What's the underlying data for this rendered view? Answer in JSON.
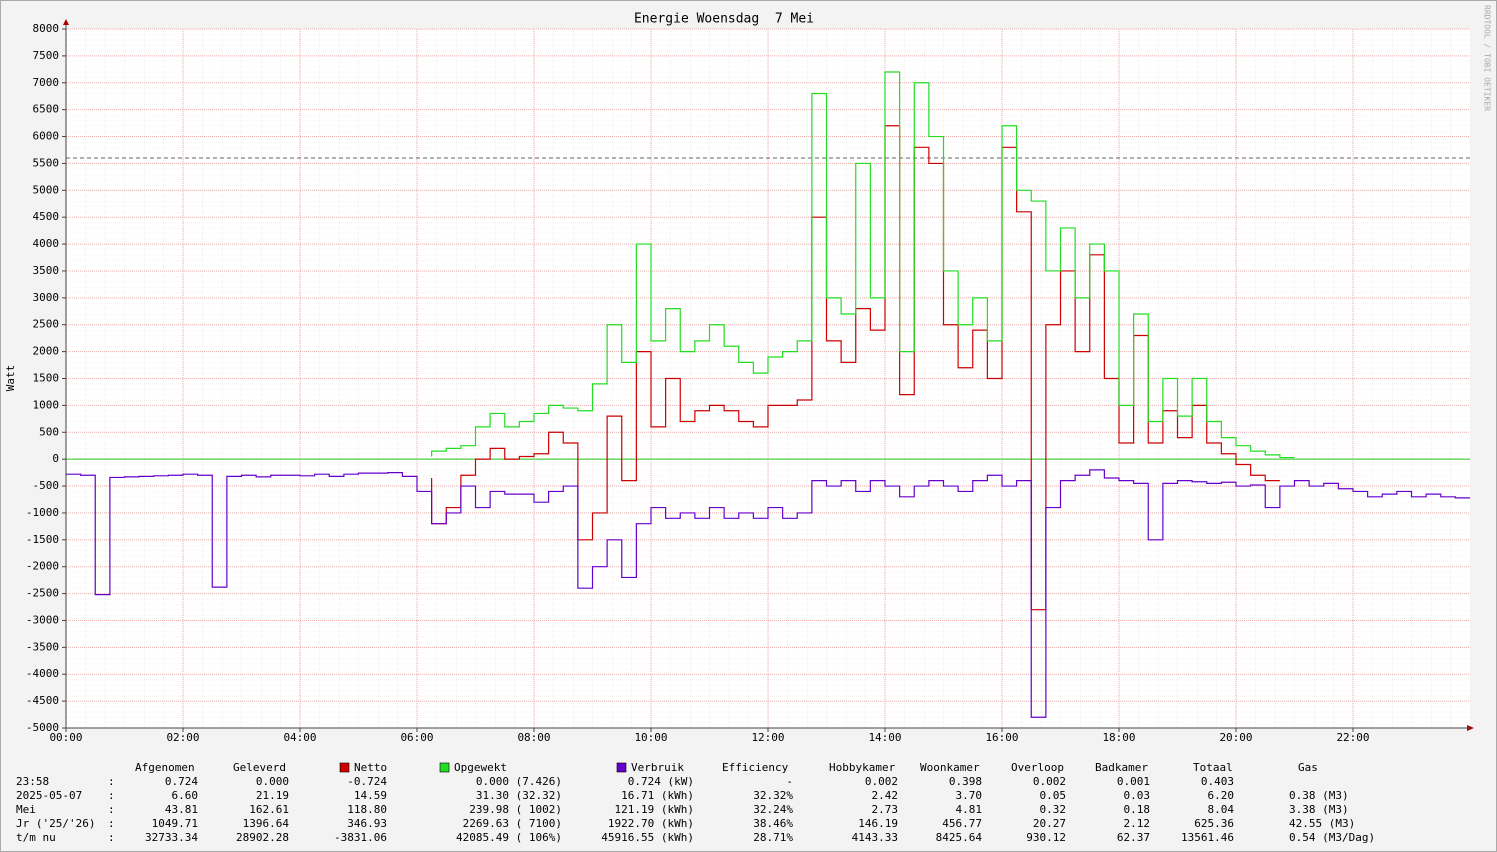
{
  "chart_data": {
    "type": "line",
    "title": "Energie Woensdag  7 Mei",
    "ylabel": "Watt",
    "watermark": "RRDTOOL / TOBI OETIKER",
    "xlim": [
      0,
      24
    ],
    "ylim": [
      -5000,
      8000
    ],
    "xticks": [
      {
        "value": 0,
        "label": "00:00"
      },
      {
        "value": 2,
        "label": "02:00"
      },
      {
        "value": 4,
        "label": "04:00"
      },
      {
        "value": 6,
        "label": "06:00"
      },
      {
        "value": 8,
        "label": "08:00"
      },
      {
        "value": 10,
        "label": "10:00"
      },
      {
        "value": 12,
        "label": "12:00"
      },
      {
        "value": 14,
        "label": "14:00"
      },
      {
        "value": 16,
        "label": "16:00"
      },
      {
        "value": 18,
        "label": "18:00"
      },
      {
        "value": 20,
        "label": "20:00"
      },
      {
        "value": 22,
        "label": "22:00"
      }
    ],
    "yticks": [
      -5000,
      -4500,
      -4000,
      -3500,
      -3000,
      -2500,
      -2000,
      -1500,
      -1000,
      -500,
      0,
      500,
      1000,
      1500,
      2000,
      2500,
      3000,
      3500,
      4000,
      4500,
      5000,
      5500,
      6000,
      6500,
      7000,
      7500,
      8000
    ],
    "grid": true,
    "hline": 5600,
    "x": [
      0,
      0.25,
      0.5,
      0.75,
      1,
      1.25,
      1.5,
      1.75,
      2,
      2.25,
      2.5,
      2.75,
      3,
      3.25,
      3.5,
      3.75,
      4,
      4.25,
      4.5,
      4.75,
      5,
      5.25,
      5.5,
      5.75,
      6,
      6.25,
      6.5,
      6.75,
      7,
      7.25,
      7.5,
      7.75,
      8,
      8.25,
      8.5,
      8.75,
      9,
      9.25,
      9.5,
      9.75,
      10,
      10.25,
      10.5,
      10.75,
      11,
      11.25,
      11.5,
      11.75,
      12,
      12.25,
      12.5,
      12.75,
      13,
      13.25,
      13.5,
      13.75,
      14,
      14.25,
      14.5,
      14.75,
      15,
      15.25,
      15.5,
      15.75,
      16,
      16.25,
      16.5,
      16.75,
      17,
      17.25,
      17.5,
      17.75,
      18,
      18.25,
      18.5,
      18.75,
      19,
      19.25,
      19.5,
      19.75,
      20,
      20.25,
      20.5,
      20.75,
      21,
      21.25,
      21.5,
      21.75,
      22,
      22.25,
      22.5,
      22.75,
      23,
      23.25,
      23.5,
      23.75,
      24
    ],
    "series": [
      {
        "name": "Netto",
        "color": "#cc0000",
        "values": [
          null,
          null,
          null,
          null,
          null,
          null,
          null,
          null,
          null,
          null,
          null,
          null,
          null,
          null,
          null,
          null,
          null,
          null,
          null,
          null,
          null,
          null,
          null,
          null,
          null,
          -350,
          -1200,
          -900,
          -300,
          0,
          200,
          0,
          50,
          100,
          500,
          300,
          -1500,
          -1000,
          800,
          -400,
          2000,
          600,
          1500,
          700,
          900,
          1000,
          900,
          700,
          600,
          1000,
          1000,
          1100,
          4500,
          2200,
          1800,
          2800,
          2400,
          6200,
          1200,
          5800,
          5500,
          2500,
          1700,
          2400,
          1500,
          5800,
          4600,
          -2800,
          2500,
          3500,
          2000,
          3800,
          1500,
          300,
          2300,
          300,
          900,
          400,
          1000,
          300,
          100,
          -100,
          -300,
          -400,
          null,
          null,
          null,
          null,
          null,
          null,
          null,
          null,
          null,
          null,
          null,
          null,
          null
        ]
      },
      {
        "name": "Opgewekt",
        "color": "#22dd22",
        "values": [
          null,
          null,
          null,
          null,
          null,
          null,
          null,
          null,
          null,
          null,
          null,
          null,
          null,
          null,
          null,
          null,
          null,
          null,
          null,
          null,
          null,
          null,
          null,
          null,
          null,
          50,
          150,
          200,
          250,
          600,
          850,
          600,
          700,
          850,
          1000,
          950,
          900,
          1400,
          2500,
          1800,
          4000,
          2200,
          2800,
          2000,
          2200,
          2500,
          2100,
          1800,
          1600,
          1900,
          2000,
          2200,
          6800,
          3000,
          2700,
          5500,
          3000,
          7200,
          2000,
          7000,
          6000,
          3500,
          2500,
          3000,
          2200,
          6200,
          5000,
          4800,
          3500,
          4300,
          3000,
          4000,
          3500,
          1000,
          2700,
          700,
          1500,
          800,
          1500,
          700,
          400,
          250,
          150,
          80,
          30,
          null,
          null,
          null,
          null,
          null,
          null,
          null,
          null,
          null,
          null,
          null,
          null
        ]
      },
      {
        "name": "Verbruik",
        "color": "#6600cc",
        "values": [
          -300,
          -280,
          -300,
          -2520,
          -340,
          -330,
          -320,
          -310,
          -300,
          -280,
          -300,
          -2380,
          -320,
          -300,
          -330,
          -300,
          -300,
          -310,
          -280,
          -320,
          -280,
          -260,
          -260,
          -250,
          -320,
          -600,
          -1200,
          -1000,
          -500,
          -900,
          -600,
          -650,
          -650,
          -800,
          -600,
          -500,
          -2400,
          -2000,
          -1500,
          -2200,
          -1200,
          -900,
          -1100,
          -1000,
          -1100,
          -900,
          -1100,
          -1000,
          -1100,
          -900,
          -1100,
          -1000,
          -400,
          -500,
          -400,
          -600,
          -400,
          -500,
          -700,
          -500,
          -400,
          -500,
          -600,
          -400,
          -300,
          -500,
          -400,
          -4800,
          -900,
          -400,
          -300,
          -200,
          -350,
          -400,
          -450,
          -1500,
          -450,
          -400,
          -420,
          -450,
          -430,
          -500,
          -480,
          -900,
          -500,
          -400,
          -500,
          -450,
          -550,
          -600,
          -700,
          -650,
          -600,
          -700,
          -650,
          -700,
          -720
        ]
      }
    ],
    "legend_table": {
      "headers": [
        "Afgenomen",
        "Geleverd",
        "Efficiency",
        "Hobbykamer",
        "Woonkamer",
        "Overloop",
        "Badkamer",
        "Totaal",
        "Gas"
      ],
      "rows": [
        {
          "label": "23:58",
          "sep": ":",
          "cells": [
            "0.724",
            "0.000",
            "-0.724",
            "0.000 (7.426)",
            "0.724 (kW)",
            "-",
            "0.002",
            "0.398",
            "0.002",
            "0.001",
            "0.403"
          ]
        },
        {
          "label": "2025-05-07",
          "sep": ":",
          "cells": [
            "6.60",
            "21.19",
            "14.59",
            "31.30 (32.32)",
            "16.71 (kWh)",
            "32.32%",
            "2.42",
            "3.70",
            "0.05",
            "0.03",
            "6.20",
            "0.38 (M3)"
          ]
        },
        {
          "label": "Mei",
          "sep": ":",
          "cells": [
            "43.81",
            "162.61",
            "118.80",
            "239.98 ( 1002)",
            "121.19 (kWh)",
            "32.24%",
            "2.73",
            "4.81",
            "0.32",
            "0.18",
            "8.04",
            "3.38 (M3)"
          ]
        },
        {
          "label": "Jr ('25/'26)",
          "sep": ":",
          "cells": [
            "1049.71",
            "1396.64",
            "346.93",
            "2269.63 ( 7100)",
            "1922.70 (kWh)",
            "38.46%",
            "146.19",
            "456.77",
            "20.27",
            "2.12",
            "625.36",
            "42.55 (M3)"
          ]
        },
        {
          "label": "t/m nu",
          "sep": ":",
          "cells": [
            "32733.34",
            "28902.28",
            "-3831.06",
            "42085.49 ( 106%)",
            "45916.55 (kWh)",
            "28.71%",
            "4143.33",
            "8425.64",
            "930.12",
            "62.37",
            "13561.46",
            "0.54 (M3/Dag)"
          ]
        }
      ]
    }
  }
}
